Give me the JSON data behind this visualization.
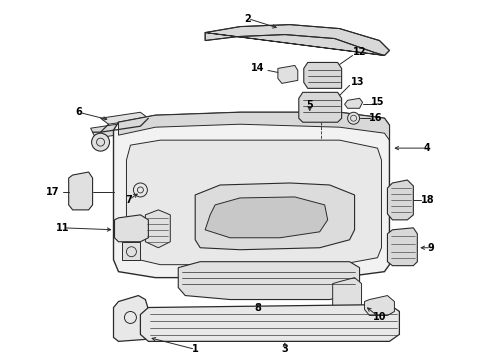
{
  "background_color": "#ffffff",
  "line_color": "#2a2a2a",
  "text_color": "#000000",
  "fig_width": 4.9,
  "fig_height": 3.6,
  "dpi": 100
}
